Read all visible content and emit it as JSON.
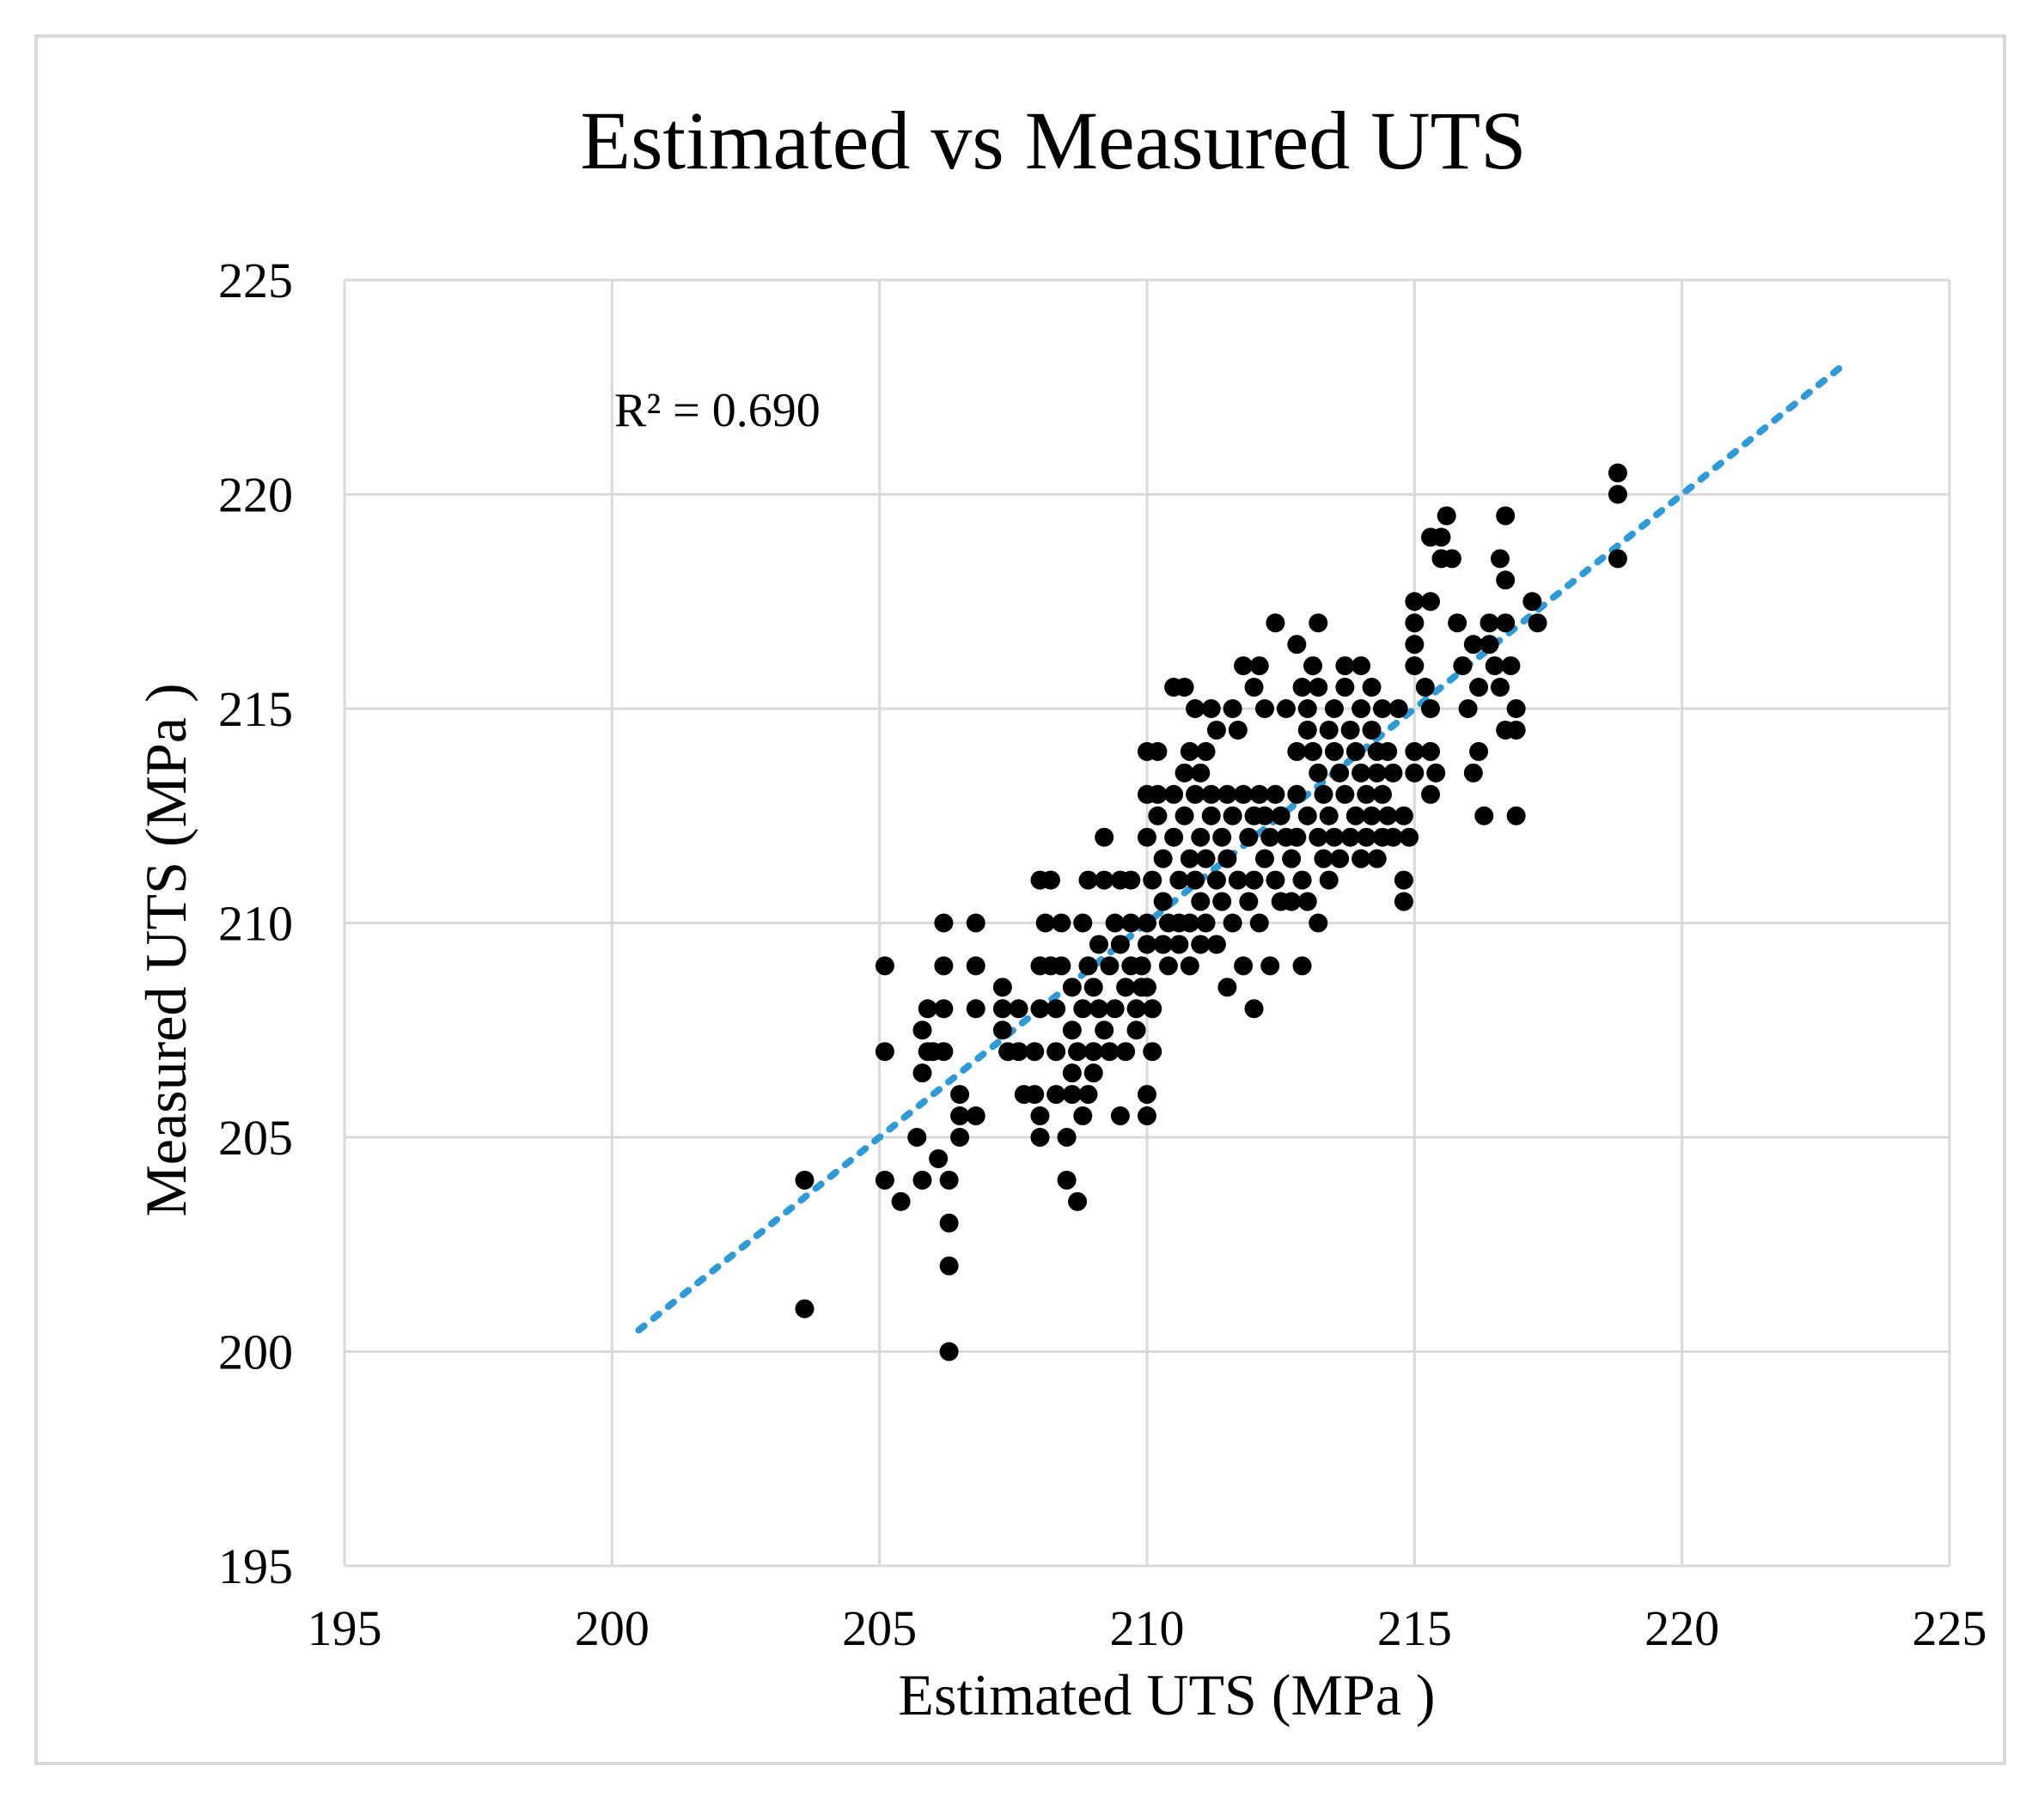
{
  "chart_data": {
    "type": "scatter",
    "title": "Estimated vs Measured UTS",
    "xlabel": "Estimated UTS (MPa )",
    "ylabel": "Measured UTS (MPa )",
    "xlim": [
      195,
      225
    ],
    "ylim": [
      195,
      225
    ],
    "xticks": [
      195,
      200,
      205,
      210,
      215,
      220,
      225
    ],
    "yticks": [
      195,
      200,
      205,
      210,
      215,
      220,
      225
    ],
    "grid": true,
    "annotation": "R² = 0.690",
    "marker_color": "#000000",
    "trendline": {
      "style": "dotted",
      "color": "#2e9ad6",
      "points": [
        [
          200.5,
          200.5
        ],
        [
          223.0,
          223.0
        ]
      ]
    },
    "series": [
      {
        "name": "UTS",
        "points": [
          [
            203.6,
            204.0
          ],
          [
            203.6,
            201.0
          ],
          [
            205.1,
            209.0
          ],
          [
            205.1,
            207.0
          ],
          [
            205.1,
            204.0
          ],
          [
            205.4,
            203.5
          ],
          [
            205.7,
            205.0
          ],
          [
            205.8,
            204.0
          ],
          [
            205.8,
            206.5
          ],
          [
            205.8,
            207.5
          ],
          [
            205.9,
            208.0
          ],
          [
            205.9,
            207.0
          ],
          [
            206.0,
            207.0
          ],
          [
            206.1,
            204.5
          ],
          [
            206.2,
            210.0
          ],
          [
            206.2,
            209.0
          ],
          [
            206.2,
            208.0
          ],
          [
            206.2,
            207.0
          ],
          [
            206.3,
            204.0
          ],
          [
            206.3,
            203.0
          ],
          [
            206.3,
            202.0
          ],
          [
            206.3,
            200.0
          ],
          [
            206.5,
            206.0
          ],
          [
            206.5,
            205.5
          ],
          [
            206.5,
            205.0
          ],
          [
            206.8,
            210.0
          ],
          [
            206.8,
            209.0
          ],
          [
            206.8,
            208.0
          ],
          [
            206.8,
            205.5
          ],
          [
            207.3,
            208.5
          ],
          [
            207.3,
            208.0
          ],
          [
            207.3,
            207.5
          ],
          [
            207.4,
            207.0
          ],
          [
            207.6,
            208.0
          ],
          [
            207.6,
            207.0
          ],
          [
            207.7,
            206.0
          ],
          [
            207.9,
            207.0
          ],
          [
            207.9,
            206.0
          ],
          [
            208.0,
            211.0
          ],
          [
            208.0,
            209.0
          ],
          [
            208.0,
            208.0
          ],
          [
            208.0,
            205.5
          ],
          [
            208.0,
            205.0
          ],
          [
            208.1,
            210.0
          ],
          [
            208.2,
            211.0
          ],
          [
            208.2,
            209.0
          ],
          [
            208.3,
            208.0
          ],
          [
            208.3,
            207.0
          ],
          [
            208.3,
            206.0
          ],
          [
            208.4,
            210.0
          ],
          [
            208.4,
            209.0
          ],
          [
            208.5,
            205.0
          ],
          [
            208.5,
            204.0
          ],
          [
            208.6,
            208.5
          ],
          [
            208.6,
            207.5
          ],
          [
            208.6,
            206.5
          ],
          [
            208.6,
            206.0
          ],
          [
            208.7,
            207.0
          ],
          [
            208.7,
            203.5
          ],
          [
            208.8,
            210.0
          ],
          [
            208.8,
            208.0
          ],
          [
            208.8,
            205.5
          ],
          [
            208.9,
            211.0
          ],
          [
            208.9,
            209.0
          ],
          [
            208.9,
            206.0
          ],
          [
            209.0,
            208.5
          ],
          [
            209.0,
            207.0
          ],
          [
            209.0,
            206.5
          ],
          [
            209.1,
            209.5
          ],
          [
            209.1,
            208.0
          ],
          [
            209.2,
            212.0
          ],
          [
            209.2,
            211.0
          ],
          [
            209.2,
            207.5
          ],
          [
            209.3,
            209.0
          ],
          [
            209.3,
            207.0
          ],
          [
            209.4,
            210.0
          ],
          [
            209.4,
            208.0
          ],
          [
            209.5,
            211.0
          ],
          [
            209.5,
            209.5
          ],
          [
            209.5,
            205.5
          ],
          [
            209.6,
            208.5
          ],
          [
            209.6,
            207.0
          ],
          [
            209.7,
            210.0
          ],
          [
            209.7,
            209.0
          ],
          [
            209.7,
            211.0
          ],
          [
            209.8,
            208.0
          ],
          [
            209.8,
            207.5
          ],
          [
            209.9,
            209.0
          ],
          [
            209.9,
            208.5
          ],
          [
            210.0,
            214.0
          ],
          [
            210.0,
            213.0
          ],
          [
            210.0,
            212.0
          ],
          [
            210.0,
            210.0
          ],
          [
            210.0,
            209.5
          ],
          [
            210.0,
            208.5
          ],
          [
            210.0,
            206.0
          ],
          [
            210.0,
            205.5
          ],
          [
            210.1,
            211.0
          ],
          [
            210.1,
            208.0
          ],
          [
            210.1,
            207.0
          ],
          [
            210.2,
            214.0
          ],
          [
            210.2,
            213.0
          ],
          [
            210.2,
            212.5
          ],
          [
            210.3,
            211.5
          ],
          [
            210.3,
            210.5
          ],
          [
            210.3,
            209.5
          ],
          [
            210.4,
            210.0
          ],
          [
            210.4,
            209.0
          ],
          [
            210.5,
            215.5
          ],
          [
            210.5,
            213.0
          ],
          [
            210.5,
            212.0
          ],
          [
            210.6,
            211.0
          ],
          [
            210.6,
            210.0
          ],
          [
            210.6,
            209.5
          ],
          [
            210.7,
            215.5
          ],
          [
            210.7,
            213.5
          ],
          [
            210.7,
            212.5
          ],
          [
            210.8,
            214.0
          ],
          [
            210.8,
            211.5
          ],
          [
            210.8,
            210.0
          ],
          [
            210.8,
            209.0
          ],
          [
            210.9,
            215.0
          ],
          [
            210.9,
            213.0
          ],
          [
            210.9,
            211.0
          ],
          [
            211.0,
            213.5
          ],
          [
            211.0,
            212.0
          ],
          [
            211.0,
            210.5
          ],
          [
            211.0,
            209.5
          ],
          [
            211.1,
            214.0
          ],
          [
            211.1,
            211.5
          ],
          [
            211.1,
            210.0
          ],
          [
            211.2,
            215.0
          ],
          [
            211.2,
            213.0
          ],
          [
            211.2,
            212.5
          ],
          [
            211.3,
            214.5
          ],
          [
            211.3,
            211.0
          ],
          [
            211.3,
            209.5
          ],
          [
            211.4,
            212.0
          ],
          [
            211.4,
            210.5
          ],
          [
            211.5,
            213.0
          ],
          [
            211.5,
            211.5
          ],
          [
            211.5,
            208.5
          ],
          [
            211.6,
            215.0
          ],
          [
            211.6,
            212.5
          ],
          [
            211.6,
            210.0
          ],
          [
            211.7,
            214.5
          ],
          [
            211.7,
            211.0
          ],
          [
            211.8,
            216.0
          ],
          [
            211.8,
            213.0
          ],
          [
            211.8,
            209.0
          ],
          [
            211.9,
            212.0
          ],
          [
            211.9,
            210.5
          ],
          [
            212.0,
            215.5
          ],
          [
            212.0,
            212.5
          ],
          [
            212.0,
            211.0
          ],
          [
            212.0,
            208.0
          ],
          [
            212.1,
            216.0
          ],
          [
            212.1,
            213.0
          ],
          [
            212.1,
            210.0
          ],
          [
            212.2,
            215.0
          ],
          [
            212.2,
            212.5
          ],
          [
            212.2,
            211.5
          ],
          [
            212.3,
            212.0
          ],
          [
            212.3,
            209.0
          ],
          [
            212.4,
            217.0
          ],
          [
            212.4,
            213.0
          ],
          [
            212.4,
            211.0
          ],
          [
            212.5,
            212.5
          ],
          [
            212.5,
            210.5
          ],
          [
            212.6,
            215.0
          ],
          [
            212.6,
            212.0
          ],
          [
            212.7,
            211.5
          ],
          [
            212.7,
            210.5
          ],
          [
            212.8,
            216.5
          ],
          [
            212.8,
            214.0
          ],
          [
            212.8,
            213.0
          ],
          [
            212.8,
            212.0
          ],
          [
            212.9,
            215.5
          ],
          [
            212.9,
            211.0
          ],
          [
            212.9,
            209.0
          ],
          [
            213.0,
            215.0
          ],
          [
            213.0,
            214.5
          ],
          [
            213.0,
            212.5
          ],
          [
            213.0,
            210.5
          ],
          [
            213.1,
            216.0
          ],
          [
            213.1,
            214.0
          ],
          [
            213.2,
            217.0
          ],
          [
            213.2,
            215.5
          ],
          [
            213.2,
            213.5
          ],
          [
            213.2,
            212.0
          ],
          [
            213.2,
            210.0
          ],
          [
            213.3,
            213.0
          ],
          [
            213.3,
            211.5
          ],
          [
            213.4,
            214.5
          ],
          [
            213.4,
            212.5
          ],
          [
            213.4,
            211.0
          ],
          [
            213.5,
            215.0
          ],
          [
            213.5,
            214.0
          ],
          [
            213.5,
            212.0
          ],
          [
            213.6,
            213.5
          ],
          [
            213.6,
            211.5
          ],
          [
            213.7,
            216.0
          ],
          [
            213.7,
            215.5
          ],
          [
            213.7,
            213.0
          ],
          [
            213.8,
            214.5
          ],
          [
            213.8,
            212.0
          ],
          [
            213.9,
            214.0
          ],
          [
            213.9,
            212.5
          ],
          [
            214.0,
            216.0
          ],
          [
            214.0,
            215.0
          ],
          [
            214.0,
            213.5
          ],
          [
            214.0,
            211.5
          ],
          [
            214.1,
            213.0
          ],
          [
            214.1,
            212.0
          ],
          [
            214.2,
            215.5
          ],
          [
            214.2,
            214.5
          ],
          [
            214.2,
            212.5
          ],
          [
            214.3,
            214.0
          ],
          [
            214.3,
            213.5
          ],
          [
            214.3,
            211.5
          ],
          [
            214.4,
            215.0
          ],
          [
            214.4,
            213.0
          ],
          [
            214.4,
            212.0
          ],
          [
            214.5,
            214.0
          ],
          [
            214.5,
            212.5
          ],
          [
            214.6,
            213.5
          ],
          [
            214.6,
            212.0
          ],
          [
            214.7,
            215.0
          ],
          [
            214.8,
            212.5
          ],
          [
            214.8,
            211.0
          ],
          [
            214.8,
            210.5
          ],
          [
            214.9,
            212.0
          ],
          [
            215.0,
            217.5
          ],
          [
            215.0,
            217.0
          ],
          [
            215.0,
            216.5
          ],
          [
            215.0,
            216.0
          ],
          [
            215.0,
            214.0
          ],
          [
            215.0,
            213.5
          ],
          [
            215.2,
            215.5
          ],
          [
            215.3,
            219.0
          ],
          [
            215.3,
            217.5
          ],
          [
            215.3,
            215.0
          ],
          [
            215.3,
            214.0
          ],
          [
            215.3,
            213.0
          ],
          [
            215.4,
            213.5
          ],
          [
            215.5,
            219.0
          ],
          [
            215.5,
            218.5
          ],
          [
            215.6,
            219.5
          ],
          [
            215.7,
            218.5
          ],
          [
            215.8,
            217.0
          ],
          [
            215.9,
            216.0
          ],
          [
            216.0,
            215.0
          ],
          [
            216.1,
            216.5
          ],
          [
            216.1,
            213.5
          ],
          [
            216.2,
            215.5
          ],
          [
            216.2,
            214.0
          ],
          [
            216.3,
            212.5
          ],
          [
            216.4,
            217.0
          ],
          [
            216.4,
            216.5
          ],
          [
            216.5,
            216.0
          ],
          [
            216.6,
            218.5
          ],
          [
            216.6,
            215.5
          ],
          [
            216.7,
            219.5
          ],
          [
            216.7,
            218.0
          ],
          [
            216.7,
            217.0
          ],
          [
            216.7,
            214.5
          ],
          [
            216.8,
            216.0
          ],
          [
            216.9,
            215.0
          ],
          [
            216.9,
            214.5
          ],
          [
            216.9,
            212.5
          ],
          [
            217.2,
            217.5
          ],
          [
            217.3,
            217.0
          ],
          [
            218.8,
            220.5
          ],
          [
            218.8,
            220.0
          ],
          [
            218.8,
            218.5
          ]
        ]
      }
    ]
  }
}
